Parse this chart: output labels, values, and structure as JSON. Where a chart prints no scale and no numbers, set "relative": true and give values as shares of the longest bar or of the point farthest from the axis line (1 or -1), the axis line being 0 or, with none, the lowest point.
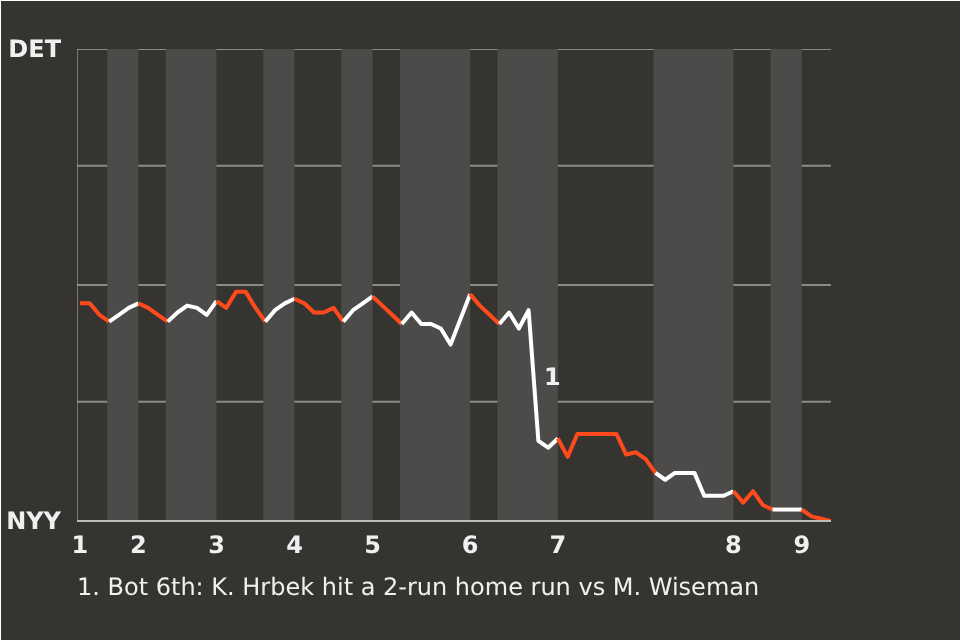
{
  "chart_data": {
    "type": "line",
    "relative": true,
    "categories": [
      "1",
      null,
      null,
      null,
      null,
      null,
      "2",
      null,
      null,
      null,
      null,
      null,
      null,
      null,
      "3",
      null,
      null,
      null,
      null,
      null,
      null,
      null,
      "4",
      null,
      null,
      null,
      null,
      null,
      null,
      null,
      "5",
      null,
      null,
      null,
      null,
      null,
      null,
      null,
      null,
      null,
      "6",
      null,
      null,
      null,
      null,
      null,
      null,
      null,
      null,
      "7",
      null,
      null,
      null,
      null,
      null,
      null,
      null,
      null,
      null,
      null,
      null,
      null,
      null,
      null,
      null,
      null,
      null,
      "8",
      null,
      null,
      null,
      null,
      null,
      null,
      "9",
      null,
      null,
      null
    ],
    "ref_lines": [
      {
        "axis": "y",
        "value": 0.52,
        "color": "#8a8a88"
      },
      {
        "axis": "y",
        "value": 1.03,
        "color": "#8a8a88"
      },
      {
        "axis": "y",
        "value": 1.55,
        "color": "#8a8a88"
      },
      {
        "axis": "y",
        "value": 2.06,
        "color": "#8a8a88"
      }
    ],
    "marker": "none",
    "line_style": "solid",
    "series": [
      {
        "color": "#ff4a1c",
        "values": [
          0.95,
          0.95,
          0.9,
          0.87,
          null,
          null,
          null,
          null,
          null,
          null,
          null,
          null,
          null,
          null,
          null,
          null,
          null,
          null,
          null,
          null,
          null,
          null,
          null,
          null,
          null,
          null,
          null,
          null,
          null,
          null,
          null,
          null,
          null,
          null,
          null,
          null,
          null,
          null,
          null,
          null,
          null,
          null,
          null,
          null,
          null,
          null,
          null,
          null,
          null,
          null,
          null,
          null,
          null,
          null,
          null,
          null,
          null,
          null,
          null,
          null,
          null,
          null,
          null,
          null,
          null,
          null,
          null,
          null,
          null,
          null,
          null,
          null,
          null,
          null,
          null,
          null,
          null,
          null
        ]
      },
      {
        "color": "#ffffff",
        "values": [
          null,
          null,
          null,
          0.87,
          0.9,
          0.93,
          0.95,
          null,
          null,
          null,
          null,
          null,
          null,
          null,
          null,
          null,
          null,
          null,
          null,
          null,
          null,
          null,
          null,
          null,
          null,
          null,
          null,
          null,
          null,
          null,
          null,
          null,
          null,
          null,
          null,
          null,
          null,
          null,
          null,
          null,
          null,
          null,
          null,
          null,
          null,
          null,
          null,
          null,
          null,
          null,
          null,
          null,
          null,
          null,
          null,
          null,
          null,
          null,
          null,
          null,
          null,
          null,
          null,
          null,
          null,
          null,
          null,
          null,
          null,
          null,
          null,
          null,
          null,
          null,
          null,
          null,
          null,
          null
        ]
      },
      {
        "color": "#ff4a1c",
        "values": [
          null,
          null,
          null,
          null,
          null,
          null,
          0.95,
          0.93,
          0.9,
          0.87,
          null,
          null,
          null,
          null,
          null,
          null,
          null,
          null,
          null,
          null,
          null,
          null,
          null,
          null,
          null,
          null,
          null,
          null,
          null,
          null,
          null,
          null,
          null,
          null,
          null,
          null,
          null,
          null,
          null,
          null,
          null,
          null,
          null,
          null,
          null,
          null,
          null,
          null,
          null,
          null,
          null,
          null,
          null,
          null,
          null,
          null,
          null,
          null,
          null,
          null,
          null,
          null,
          null,
          null,
          null,
          null,
          null,
          null,
          null,
          null,
          null,
          null,
          null,
          null,
          null,
          null,
          null,
          null
        ]
      },
      {
        "color": "#ffffff",
        "values": [
          null,
          null,
          null,
          null,
          null,
          null,
          null,
          null,
          null,
          0.87,
          0.91,
          0.94,
          0.93,
          0.9,
          0.96,
          null,
          null,
          null,
          null,
          null,
          null,
          null,
          null,
          null,
          null,
          null,
          null,
          null,
          null,
          null,
          null,
          null,
          null,
          null,
          null,
          null,
          null,
          null,
          null,
          null,
          null,
          null,
          null,
          null,
          null,
          null,
          null,
          null,
          null,
          null,
          null,
          null,
          null,
          null,
          null,
          null,
          null,
          null,
          null,
          null,
          null,
          null,
          null,
          null,
          null,
          null,
          null,
          null,
          null,
          null,
          null,
          null,
          null,
          null,
          null,
          null,
          null,
          null
        ]
      },
      {
        "color": "#ff4a1c",
        "values": [
          null,
          null,
          null,
          null,
          null,
          null,
          null,
          null,
          null,
          null,
          null,
          null,
          null,
          null,
          0.96,
          0.93,
          1,
          1,
          0.93,
          0.87,
          null,
          null,
          null,
          null,
          null,
          null,
          null,
          null,
          null,
          null,
          null,
          null,
          null,
          null,
          null,
          null,
          null,
          null,
          null,
          null,
          null,
          null,
          null,
          null,
          null,
          null,
          null,
          null,
          null,
          null,
          null,
          null,
          null,
          null,
          null,
          null,
          null,
          null,
          null,
          null,
          null,
          null,
          null,
          null,
          null,
          null,
          null,
          null,
          null,
          null,
          null,
          null,
          null,
          null,
          null,
          null,
          null,
          null
        ]
      },
      {
        "color": "#ffffff",
        "values": [
          null,
          null,
          null,
          null,
          null,
          null,
          null,
          null,
          null,
          null,
          null,
          null,
          null,
          null,
          null,
          null,
          null,
          null,
          null,
          0.87,
          0.92,
          0.95,
          0.97,
          null,
          null,
          null,
          null,
          null,
          null,
          null,
          null,
          null,
          null,
          null,
          null,
          null,
          null,
          null,
          null,
          null,
          null,
          null,
          null,
          null,
          null,
          null,
          null,
          null,
          null,
          null,
          null,
          null,
          null,
          null,
          null,
          null,
          null,
          null,
          null,
          null,
          null,
          null,
          null,
          null,
          null,
          null,
          null,
          null,
          null,
          null,
          null,
          null,
          null,
          null,
          null,
          null,
          null,
          null
        ]
      },
      {
        "color": "#ff4a1c",
        "values": [
          null,
          null,
          null,
          null,
          null,
          null,
          null,
          null,
          null,
          null,
          null,
          null,
          null,
          null,
          null,
          null,
          null,
          null,
          null,
          null,
          null,
          null,
          0.97,
          0.95,
          0.91,
          0.91,
          0.93,
          0.87,
          null,
          null,
          null,
          null,
          null,
          null,
          null,
          null,
          null,
          null,
          null,
          null,
          null,
          null,
          null,
          null,
          null,
          null,
          null,
          null,
          null,
          null,
          null,
          null,
          null,
          null,
          null,
          null,
          null,
          null,
          null,
          null,
          null,
          null,
          null,
          null,
          null,
          null,
          null,
          null,
          null,
          null,
          null,
          null,
          null,
          null,
          null,
          null,
          null,
          null
        ]
      },
      {
        "color": "#ffffff",
        "values": [
          null,
          null,
          null,
          null,
          null,
          null,
          null,
          null,
          null,
          null,
          null,
          null,
          null,
          null,
          null,
          null,
          null,
          null,
          null,
          null,
          null,
          null,
          null,
          null,
          null,
          null,
          null,
          0.87,
          0.92,
          0.95,
          0.98,
          null,
          null,
          null,
          null,
          null,
          null,
          null,
          null,
          null,
          null,
          null,
          null,
          null,
          null,
          null,
          null,
          null,
          null,
          null,
          null,
          null,
          null,
          null,
          null,
          null,
          null,
          null,
          null,
          null,
          null,
          null,
          null,
          null,
          null,
          null,
          null,
          null,
          null,
          null,
          null,
          null,
          null,
          null,
          null,
          null,
          null,
          null
        ]
      },
      {
        "color": "#ff4a1c",
        "values": [
          null,
          null,
          null,
          null,
          null,
          null,
          null,
          null,
          null,
          null,
          null,
          null,
          null,
          null,
          null,
          null,
          null,
          null,
          null,
          null,
          null,
          null,
          null,
          null,
          null,
          null,
          null,
          null,
          null,
          null,
          0.98,
          0.94,
          0.9,
          0.86,
          null,
          null,
          null,
          null,
          null,
          null,
          null,
          null,
          null,
          null,
          null,
          null,
          null,
          null,
          null,
          null,
          null,
          null,
          null,
          null,
          null,
          null,
          null,
          null,
          null,
          null,
          null,
          null,
          null,
          null,
          null,
          null,
          null,
          null,
          null,
          null,
          null,
          null,
          null,
          null,
          null,
          null,
          null,
          null
        ]
      },
      {
        "color": "#ffffff",
        "values": [
          null,
          null,
          null,
          null,
          null,
          null,
          null,
          null,
          null,
          null,
          null,
          null,
          null,
          null,
          null,
          null,
          null,
          null,
          null,
          null,
          null,
          null,
          null,
          null,
          null,
          null,
          null,
          null,
          null,
          null,
          null,
          null,
          null,
          0.86,
          0.91,
          0.86,
          0.86,
          0.84,
          0.77,
          0.88,
          0.99,
          null,
          null,
          null,
          null,
          null,
          null,
          null,
          null,
          null,
          null,
          null,
          null,
          null,
          null,
          null,
          null,
          null,
          null,
          null,
          null,
          null,
          null,
          null,
          null,
          null,
          null,
          null,
          null,
          null,
          null,
          null,
          null,
          null,
          null,
          null,
          null,
          null
        ]
      },
      {
        "color": "#ff4a1c",
        "values": [
          null,
          null,
          null,
          null,
          null,
          null,
          null,
          null,
          null,
          null,
          null,
          null,
          null,
          null,
          null,
          null,
          null,
          null,
          null,
          null,
          null,
          null,
          null,
          null,
          null,
          null,
          null,
          null,
          null,
          null,
          null,
          null,
          null,
          null,
          null,
          null,
          null,
          null,
          null,
          null,
          0.99,
          0.94,
          0.9,
          0.86,
          null,
          null,
          null,
          null,
          null,
          null,
          null,
          null,
          null,
          null,
          null,
          null,
          null,
          null,
          null,
          null,
          null,
          null,
          null,
          null,
          null,
          null,
          null,
          null,
          null,
          null,
          null,
          null,
          null,
          null,
          null,
          null,
          null,
          null
        ]
      },
      {
        "color": "#ffffff",
        "values": [
          null,
          null,
          null,
          null,
          null,
          null,
          null,
          null,
          null,
          null,
          null,
          null,
          null,
          null,
          null,
          null,
          null,
          null,
          null,
          null,
          null,
          null,
          null,
          null,
          null,
          null,
          null,
          null,
          null,
          null,
          null,
          null,
          null,
          null,
          null,
          null,
          null,
          null,
          null,
          null,
          null,
          null,
          null,
          0.86,
          0.91,
          0.84,
          0.92,
          0.35,
          0.32,
          0.36,
          null,
          null,
          null,
          null,
          null,
          null,
          null,
          null,
          null,
          null,
          null,
          null,
          null,
          null,
          null,
          null,
          null,
          null,
          null,
          null,
          null,
          null,
          null,
          null,
          null,
          null,
          null,
          null
        ]
      },
      {
        "color": "#ff4a1c",
        "values": [
          null,
          null,
          null,
          null,
          null,
          null,
          null,
          null,
          null,
          null,
          null,
          null,
          null,
          null,
          null,
          null,
          null,
          null,
          null,
          null,
          null,
          null,
          null,
          null,
          null,
          null,
          null,
          null,
          null,
          null,
          null,
          null,
          null,
          null,
          null,
          null,
          null,
          null,
          null,
          null,
          null,
          null,
          null,
          null,
          null,
          null,
          null,
          null,
          null,
          0.36,
          0.28,
          0.38,
          0.38,
          0.38,
          0.38,
          0.38,
          0.29,
          0.3,
          0.27,
          0.21,
          null,
          null,
          null,
          null,
          null,
          null,
          null,
          null,
          null,
          null,
          null,
          null,
          null,
          null,
          null,
          null,
          null,
          null
        ]
      },
      {
        "color": "#ffffff",
        "values": [
          null,
          null,
          null,
          null,
          null,
          null,
          null,
          null,
          null,
          null,
          null,
          null,
          null,
          null,
          null,
          null,
          null,
          null,
          null,
          null,
          null,
          null,
          null,
          null,
          null,
          null,
          null,
          null,
          null,
          null,
          null,
          null,
          null,
          null,
          null,
          null,
          null,
          null,
          null,
          null,
          null,
          null,
          null,
          null,
          null,
          null,
          null,
          null,
          null,
          null,
          null,
          null,
          null,
          null,
          null,
          null,
          null,
          null,
          null,
          0.21,
          0.18,
          0.21,
          0.21,
          0.21,
          0.11,
          0.11,
          0.11,
          0.13,
          null,
          null,
          null,
          null,
          null,
          null,
          null,
          null,
          null,
          null
        ]
      },
      {
        "color": "#ff4a1c",
        "values": [
          null,
          null,
          null,
          null,
          null,
          null,
          null,
          null,
          null,
          null,
          null,
          null,
          null,
          null,
          null,
          null,
          null,
          null,
          null,
          null,
          null,
          null,
          null,
          null,
          null,
          null,
          null,
          null,
          null,
          null,
          null,
          null,
          null,
          null,
          null,
          null,
          null,
          null,
          null,
          null,
          null,
          null,
          null,
          null,
          null,
          null,
          null,
          null,
          null,
          null,
          null,
          null,
          null,
          null,
          null,
          null,
          null,
          null,
          null,
          null,
          null,
          null,
          null,
          null,
          null,
          null,
          null,
          0.13,
          0.08,
          0.13,
          0.07,
          0.05,
          null,
          null,
          null,
          null,
          null,
          null
        ]
      },
      {
        "color": "#ffffff",
        "values": [
          null,
          null,
          null,
          null,
          null,
          null,
          null,
          null,
          null,
          null,
          null,
          null,
          null,
          null,
          null,
          null,
          null,
          null,
          null,
          null,
          null,
          null,
          null,
          null,
          null,
          null,
          null,
          null,
          null,
          null,
          null,
          null,
          null,
          null,
          null,
          null,
          null,
          null,
          null,
          null,
          null,
          null,
          null,
          null,
          null,
          null,
          null,
          null,
          null,
          null,
          null,
          null,
          null,
          null,
          null,
          null,
          null,
          null,
          null,
          null,
          null,
          null,
          null,
          null,
          null,
          null,
          null,
          null,
          null,
          null,
          null,
          0.05,
          0.05,
          0.05,
          0.05,
          null,
          null,
          null
        ]
      },
      {
        "color": "#ff4a1c",
        "values": [
          null,
          null,
          null,
          null,
          null,
          null,
          null,
          null,
          null,
          null,
          null,
          null,
          null,
          null,
          null,
          null,
          null,
          null,
          null,
          null,
          null,
          null,
          null,
          null,
          null,
          null,
          null,
          null,
          null,
          null,
          null,
          null,
          null,
          null,
          null,
          null,
          null,
          null,
          null,
          null,
          null,
          null,
          null,
          null,
          null,
          null,
          null,
          null,
          null,
          null,
          null,
          null,
          null,
          null,
          null,
          null,
          null,
          null,
          null,
          null,
          null,
          null,
          null,
          null,
          null,
          null,
          null,
          null,
          null,
          null,
          null,
          null,
          null,
          null,
          0.05,
          0.02,
          0.01,
          0
        ]
      }
    ],
    "annotations": [
      "1",
      "1. Bot 6th: K. Hrbek hit a 2-run home run vs M. Wiseman",
      "DET",
      "NYY"
    ]
  }
}
